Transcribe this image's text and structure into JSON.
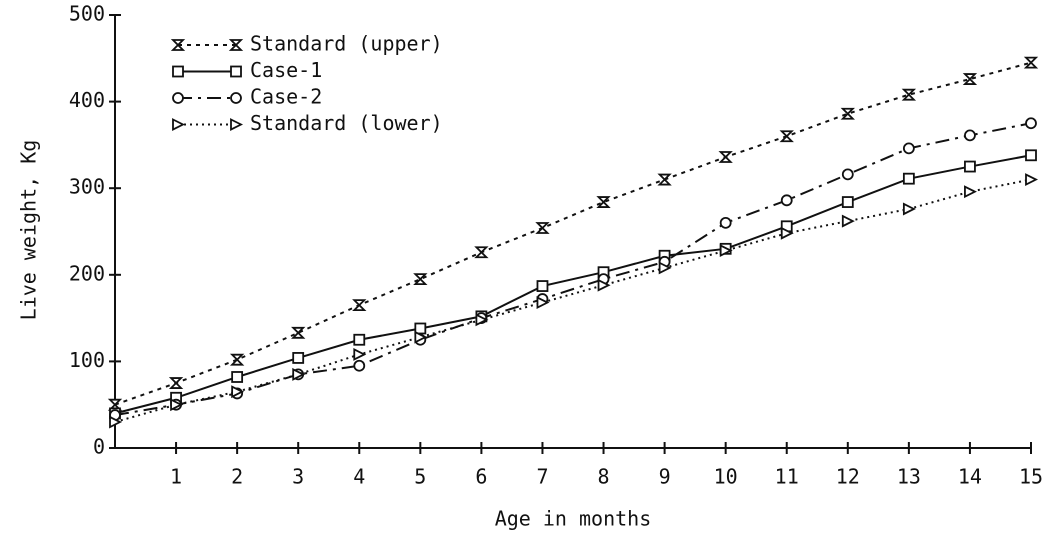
{
  "chart_data": {
    "type": "line",
    "x_label": "Age in months",
    "y_label": "Live weight, Kg",
    "x": [
      0,
      1,
      2,
      3,
      4,
      5,
      6,
      7,
      8,
      9,
      10,
      11,
      12,
      13,
      14,
      15
    ],
    "xlim": [
      0,
      15
    ],
    "xticks": [
      1,
      2,
      3,
      4,
      5,
      6,
      7,
      8,
      9,
      10,
      11,
      12,
      13,
      14,
      15
    ],
    "ylim": [
      0,
      500
    ],
    "yticks": [
      0,
      100,
      200,
      300,
      400,
      500
    ],
    "legend": "upper left",
    "series": [
      {
        "name": "Standard (upper)",
        "color": "#111111",
        "dash": "4 5",
        "marker": "hourglass",
        "values": [
          50,
          75,
          102,
          133,
          165,
          195,
          226,
          254,
          284,
          310,
          336,
          360,
          386,
          408,
          426,
          445
        ]
      },
      {
        "name": "Case-1",
        "color": "#111111",
        "dash": "none",
        "marker": "square",
        "values": [
          40,
          58,
          82,
          104,
          125,
          138,
          152,
          187,
          203,
          222,
          230,
          256,
          284,
          311,
          325,
          338
        ]
      },
      {
        "name": "Case-2",
        "color": "#111111",
        "dash": "14 6 3 6",
        "marker": "circle",
        "values": [
          38,
          50,
          63,
          85,
          95,
          125,
          150,
          172,
          195,
          215,
          260,
          286,
          316,
          346,
          361,
          375
        ]
      },
      {
        "name": "Standard (lower)",
        "color": "#111111",
        "dash": "2 4",
        "marker": "triangle",
        "values": [
          30,
          50,
          65,
          85,
          108,
          128,
          148,
          168,
          188,
          208,
          228,
          248,
          262,
          276,
          296,
          310
        ]
      }
    ]
  }
}
